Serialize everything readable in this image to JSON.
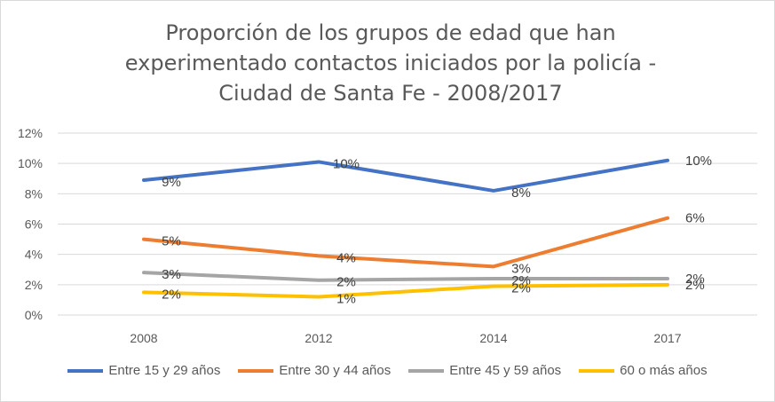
{
  "chart_data": {
    "type": "line",
    "title": "Proporción de los grupos de edad que han experimentado contactos iniciados por la policía - Ciudad de Santa Fe - 2008/2017",
    "categories": [
      "2008",
      "2012",
      "2014",
      "2017"
    ],
    "ylim": [
      0,
      12
    ],
    "yticks": [
      "0%",
      "2%",
      "4%",
      "6%",
      "8%",
      "10%",
      "12%"
    ],
    "grid": true,
    "legend_position": "bottom",
    "series": [
      {
        "name": "Entre 15 y 29 años",
        "color": "#4472c4",
        "values": [
          8.9,
          10.1,
          8.2,
          10.2
        ],
        "labels": [
          "9%",
          "10%",
          "8%",
          "10%"
        ]
      },
      {
        "name": "Entre 30 y 44 años",
        "color": "#ed7d31",
        "values": [
          5.0,
          3.9,
          3.2,
          6.4
        ],
        "labels": [
          "5%",
          "4%",
          "3%",
          "6%"
        ]
      },
      {
        "name": "Entre 45 y 59 años",
        "color": "#a5a5a5",
        "values": [
          2.8,
          2.3,
          2.4,
          2.4
        ],
        "labels": [
          "3%",
          "2%",
          "2%",
          "2%"
        ]
      },
      {
        "name": "60 o más años",
        "color": "#ffc000",
        "values": [
          1.5,
          1.2,
          1.9,
          2.0
        ],
        "labels": [
          "2%",
          "1%",
          "2%",
          "2%"
        ]
      }
    ]
  }
}
